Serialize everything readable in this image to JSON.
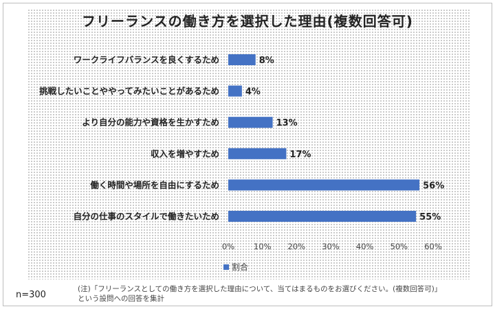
{
  "colors": {
    "bar": "#4472c4"
  },
  "chart_data": {
    "type": "bar",
    "orientation": "horizontal",
    "title": "フリーランスの働き方を選択した理由(複数回答可)",
    "categories": [
      "ワークライフバランスを良くするため",
      "挑戦したいことややってみたいことがあるため",
      "より自分の能力や資格を生かすため",
      "収入を増やすため",
      "働く時間や場所を自由にするため",
      "自分の仕事のスタイルで働きたいため"
    ],
    "series": [
      {
        "name": "割合",
        "values": [
          8,
          4,
          13,
          17,
          56,
          55
        ]
      }
    ],
    "data_labels": [
      "8%",
      "4%",
      "13%",
      "17%",
      "56%",
      "55%"
    ],
    "xlim": [
      0,
      60
    ],
    "x_ticks": [
      "0%",
      "10%",
      "20%",
      "30%",
      "40%",
      "50%",
      "60%"
    ],
    "legend_position": "bottom",
    "grid": false
  },
  "footer": {
    "sample_size": "n=300",
    "note": "(注)「フリーランスとしての働き方を選択した理由について、当てはまるものをお選びください。(複数回答可)」\nという設問への回答を集計"
  }
}
